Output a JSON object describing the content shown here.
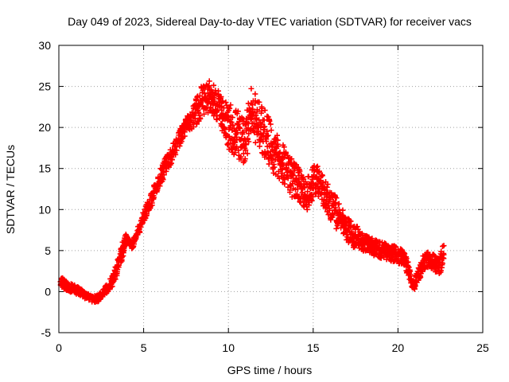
{
  "chart_data": {
    "type": "scatter",
    "title": "Day 049 of 2023, Sidereal Day-to-day VTEC variation (SDTVAR) for receiver vacs",
    "xlabel": "GPS time / hours",
    "ylabel": "SDTVAR / TECUs",
    "xlim": [
      0,
      25
    ],
    "ylim": [
      -5,
      30
    ],
    "xticks": [
      "0",
      "5",
      "10",
      "15",
      "20",
      "25"
    ],
    "yticks": [
      "-5",
      "0",
      "5",
      "10",
      "15",
      "20",
      "25",
      "30"
    ],
    "grid": true,
    "marker": "+",
    "color": "#ff0000",
    "series": [
      {
        "name": "SDTVAR",
        "x": [
          0.1,
          0.3,
          0.5,
          0.8,
          1.0,
          1.3,
          1.6,
          2.0,
          2.3,
          2.6,
          3.0,
          3.3,
          3.6,
          3.8,
          4.0,
          4.3,
          4.6,
          5.0,
          5.3,
          5.6,
          6.0,
          6.3,
          6.6,
          7.0,
          7.3,
          7.6,
          8.0,
          8.3,
          8.6,
          8.9,
          9.2,
          9.5,
          9.8,
          10.1,
          10.4,
          10.7,
          11.0,
          11.3,
          11.6,
          11.9,
          12.2,
          12.5,
          12.8,
          13.1,
          13.4,
          13.7,
          14.0,
          14.3,
          14.6,
          14.9,
          15.2,
          15.5,
          15.8,
          16.1,
          16.4,
          16.7,
          17.0,
          17.3,
          17.6,
          17.9,
          18.2,
          18.5,
          18.8,
          19.1,
          19.4,
          19.7,
          20.0,
          20.3,
          20.6,
          20.9,
          21.2,
          21.5,
          21.8,
          22.1,
          22.4,
          22.7
        ],
        "y": [
          1.2,
          0.9,
          0.6,
          0.4,
          0.2,
          0.0,
          -0.5,
          -1.0,
          -0.8,
          -0.2,
          0.8,
          2.0,
          4.0,
          5.5,
          6.5,
          5.5,
          7.0,
          9.0,
          10.5,
          12.0,
          14.0,
          15.5,
          16.5,
          18.0,
          19.5,
          20.5,
          21.5,
          22.8,
          23.5,
          23.8,
          23.2,
          22.5,
          21.0,
          20.0,
          19.5,
          18.5,
          18.0,
          22.0,
          21.0,
          20.0,
          19.0,
          18.0,
          17.0,
          16.0,
          15.0,
          14.0,
          13.5,
          12.5,
          11.5,
          13.0,
          14.0,
          12.5,
          11.5,
          10.5,
          9.5,
          8.5,
          7.5,
          7.0,
          6.5,
          6.0,
          5.8,
          5.5,
          5.2,
          5.0,
          4.8,
          4.6,
          4.5,
          4.0,
          3.0,
          0.5,
          2.0,
          3.5,
          4.0,
          3.5,
          3.0,
          4.5
        ],
        "spread": [
          0.6,
          0.6,
          0.6,
          0.5,
          0.5,
          0.5,
          0.4,
          0.4,
          0.4,
          0.5,
          0.6,
          0.8,
          1.0,
          1.0,
          0.6,
          0.5,
          0.6,
          0.7,
          0.8,
          0.9,
          1.0,
          1.0,
          1.0,
          1.0,
          1.0,
          1.0,
          1.5,
          2.0,
          2.0,
          2.0,
          2.0,
          2.0,
          2.5,
          3.0,
          3.0,
          3.0,
          3.0,
          3.0,
          3.0,
          3.0,
          3.0,
          3.0,
          3.0,
          2.5,
          2.5,
          2.5,
          2.0,
          2.0,
          2.0,
          2.0,
          2.0,
          2.0,
          2.0,
          2.0,
          2.0,
          1.5,
          1.5,
          1.5,
          1.5,
          1.0,
          1.0,
          1.0,
          1.0,
          1.0,
          1.0,
          1.0,
          1.0,
          1.0,
          1.0,
          0.5,
          1.0,
          1.0,
          1.0,
          1.0,
          1.0,
          1.5
        ]
      }
    ]
  }
}
